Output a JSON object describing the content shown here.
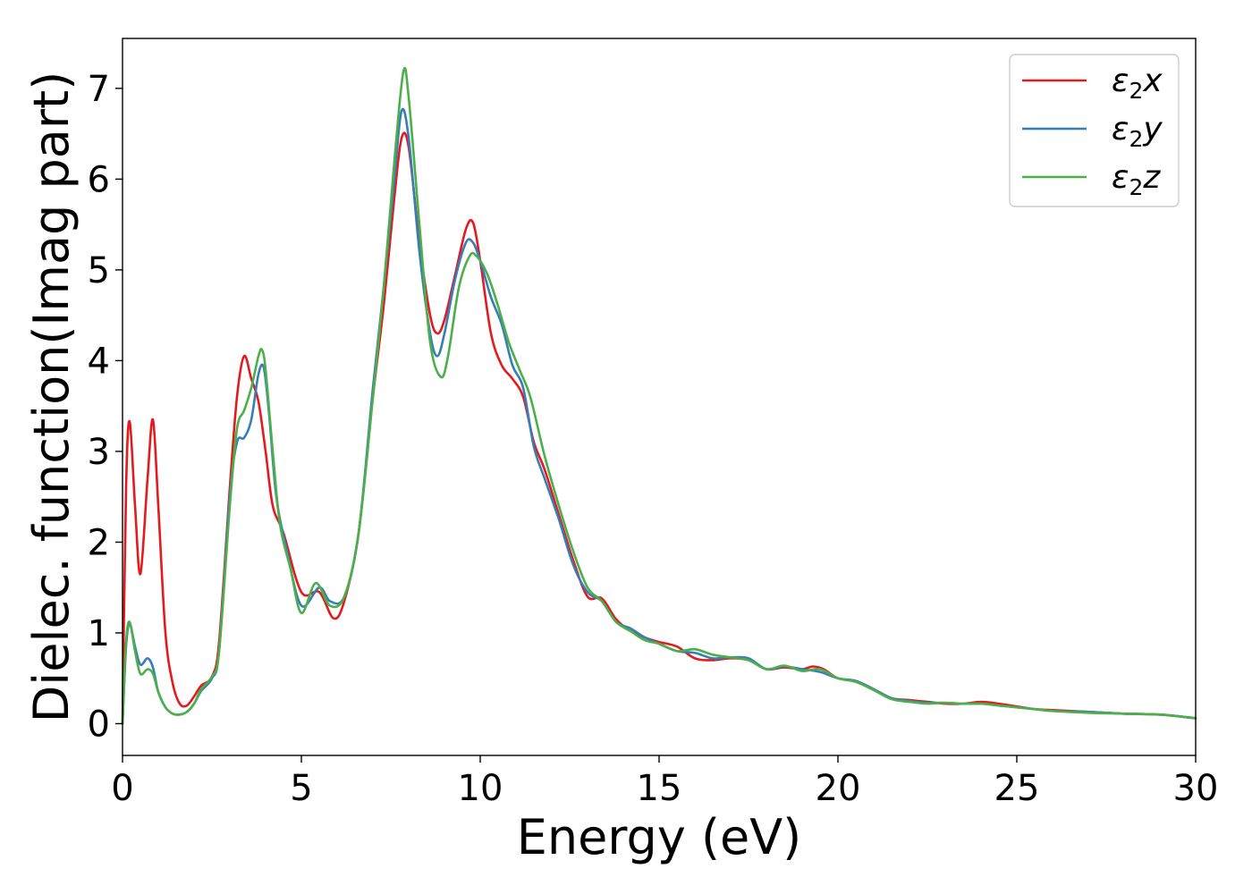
{
  "chart_data": {
    "type": "line",
    "title": "",
    "xlabel": "Energy (eV)",
    "ylabel": "Dielec. function(Imag part)",
    "xlim": [
      0,
      30
    ],
    "ylim": [
      -0.35,
      7.55
    ],
    "xticks": [
      0,
      5,
      10,
      15,
      20,
      25,
      30
    ],
    "xtick_labels": [
      "0",
      "5",
      "10",
      "15",
      "20",
      "25",
      "30"
    ],
    "yticks": [
      0,
      1,
      2,
      3,
      4,
      5,
      6,
      7
    ],
    "ytick_labels": [
      "0",
      "1",
      "2",
      "3",
      "4",
      "5",
      "6",
      "7"
    ],
    "grid": false,
    "legend_position": "top-right",
    "series": [
      {
        "name": "ε₂x",
        "label_main": "ε",
        "label_sub": "2",
        "label_tail": "x",
        "color": "#e41a1c",
        "x": [
          0,
          0.1,
          0.2,
          0.35,
          0.5,
          0.7,
          0.85,
          1.0,
          1.2,
          1.4,
          1.6,
          1.8,
          2.0,
          2.2,
          2.5,
          2.7,
          3.0,
          3.2,
          3.4,
          3.6,
          3.8,
          4.0,
          4.2,
          4.5,
          5.0,
          5.5,
          5.9,
          6.2,
          6.6,
          7.0,
          7.3,
          7.6,
          7.8,
          8.0,
          8.3,
          8.6,
          8.8,
          9.0,
          9.3,
          9.6,
          9.8,
          10.0,
          10.3,
          10.6,
          10.9,
          11.2,
          11.5,
          11.8,
          12.2,
          12.6,
          13.0,
          13.4,
          13.8,
          14.2,
          14.6,
          15.0,
          15.5,
          16.0,
          16.5,
          17.0,
          17.5,
          18.0,
          18.5,
          19.0,
          19.3,
          19.6,
          20.0,
          20.5,
          21.0,
          21.5,
          22.0,
          22.5,
          23.0,
          23.5,
          24.0,
          24.5,
          25.0,
          25.5,
          26.0,
          27.0,
          28.0,
          29.0,
          30.0
        ],
        "y": [
          0.0,
          2.6,
          3.33,
          2.4,
          1.65,
          2.7,
          3.35,
          2.4,
          1.0,
          0.45,
          0.22,
          0.2,
          0.3,
          0.42,
          0.52,
          0.9,
          2.6,
          3.6,
          4.05,
          3.8,
          3.55,
          3.0,
          2.4,
          2.1,
          1.45,
          1.45,
          1.16,
          1.35,
          2.1,
          3.6,
          4.6,
          5.8,
          6.45,
          6.35,
          5.3,
          4.5,
          4.3,
          4.45,
          4.95,
          5.45,
          5.52,
          5.1,
          4.3,
          3.95,
          3.8,
          3.6,
          3.1,
          2.8,
          2.3,
          1.8,
          1.4,
          1.38,
          1.15,
          1.02,
          0.95,
          0.9,
          0.85,
          0.72,
          0.7,
          0.72,
          0.7,
          0.6,
          0.62,
          0.6,
          0.63,
          0.6,
          0.5,
          0.47,
          0.38,
          0.28,
          0.26,
          0.24,
          0.22,
          0.22,
          0.24,
          0.22,
          0.19,
          0.16,
          0.15,
          0.13,
          0.11,
          0.1,
          0.06
        ]
      },
      {
        "name": "ε₂y",
        "label_main": "ε",
        "label_sub": "2",
        "label_tail": "y",
        "color": "#377eb8",
        "x": [
          0,
          0.1,
          0.2,
          0.35,
          0.5,
          0.7,
          0.85,
          1.0,
          1.2,
          1.4,
          1.6,
          1.8,
          2.0,
          2.2,
          2.5,
          2.7,
          3.0,
          3.2,
          3.4,
          3.6,
          3.8,
          3.95,
          4.1,
          4.3,
          4.6,
          5.0,
          5.5,
          5.8,
          6.2,
          6.6,
          7.0,
          7.3,
          7.6,
          7.8,
          8.0,
          8.3,
          8.6,
          8.8,
          9.0,
          9.3,
          9.6,
          9.8,
          10.0,
          10.3,
          10.6,
          10.9,
          11.2,
          11.5,
          11.8,
          12.2,
          12.6,
          13.0,
          13.4,
          13.8,
          14.2,
          14.6,
          15.0,
          15.5,
          16.0,
          16.5,
          17.0,
          17.5,
          18.0,
          18.5,
          19.0,
          19.5,
          20.0,
          20.5,
          21.0,
          21.5,
          22.0,
          22.5,
          23.0,
          23.5,
          24.0,
          24.5,
          25.0,
          25.5,
          26.0,
          27.0,
          28.0,
          29.0,
          30.0
        ],
        "y": [
          0.0,
          0.85,
          1.1,
          0.85,
          0.65,
          0.72,
          0.62,
          0.35,
          0.18,
          0.11,
          0.1,
          0.13,
          0.22,
          0.36,
          0.5,
          0.8,
          2.5,
          3.1,
          3.15,
          3.35,
          3.85,
          3.92,
          3.4,
          2.5,
          1.9,
          1.3,
          1.5,
          1.35,
          1.4,
          2.1,
          3.7,
          4.8,
          6.0,
          6.75,
          6.45,
          5.2,
          4.3,
          4.05,
          4.3,
          4.9,
          5.3,
          5.3,
          5.1,
          4.7,
          4.4,
          3.95,
          3.7,
          3.05,
          2.7,
          2.25,
          1.75,
          1.45,
          1.35,
          1.12,
          1.05,
          0.95,
          0.88,
          0.8,
          0.78,
          0.72,
          0.73,
          0.72,
          0.6,
          0.63,
          0.6,
          0.57,
          0.5,
          0.47,
          0.38,
          0.28,
          0.25,
          0.23,
          0.23,
          0.22,
          0.22,
          0.2,
          0.18,
          0.16,
          0.14,
          0.13,
          0.11,
          0.1,
          0.06
        ]
      },
      {
        "name": "ε₂z",
        "label_main": "ε",
        "label_sub": "2",
        "label_tail": "z",
        "color": "#4daf4a",
        "x": [
          0,
          0.1,
          0.2,
          0.35,
          0.5,
          0.7,
          0.85,
          1.0,
          1.2,
          1.4,
          1.6,
          1.8,
          2.0,
          2.2,
          2.5,
          2.7,
          3.0,
          3.2,
          3.4,
          3.6,
          3.8,
          3.9,
          4.0,
          4.2,
          4.4,
          4.7,
          5.0,
          5.4,
          5.8,
          6.2,
          6.6,
          7.0,
          7.3,
          7.6,
          7.85,
          8.0,
          8.3,
          8.6,
          8.9,
          9.1,
          9.4,
          9.7,
          9.9,
          10.2,
          10.5,
          10.8,
          11.1,
          11.4,
          11.8,
          12.2,
          12.6,
          13.0,
          13.4,
          13.8,
          14.2,
          14.6,
          15.0,
          15.5,
          16.0,
          16.5,
          17.0,
          17.5,
          18.0,
          18.5,
          19.0,
          19.5,
          20.0,
          20.5,
          21.0,
          21.5,
          22.0,
          22.5,
          23.0,
          23.5,
          24.0,
          24.5,
          25.0,
          25.5,
          26.0,
          27.0,
          28.0,
          29.0,
          30.0
        ],
        "y": [
          0.0,
          0.9,
          1.12,
          0.8,
          0.55,
          0.6,
          0.55,
          0.35,
          0.18,
          0.11,
          0.1,
          0.13,
          0.22,
          0.38,
          0.52,
          0.8,
          2.4,
          3.25,
          3.45,
          3.7,
          4.05,
          4.12,
          3.9,
          3.0,
          2.2,
          1.7,
          1.22,
          1.55,
          1.3,
          1.4,
          2.1,
          3.6,
          4.8,
          6.2,
          7.18,
          6.9,
          5.5,
          4.2,
          3.82,
          4.05,
          4.8,
          5.15,
          5.15,
          4.95,
          4.6,
          4.2,
          3.9,
          3.6,
          2.95,
          2.4,
          1.9,
          1.5,
          1.35,
          1.12,
          1.02,
          0.92,
          0.88,
          0.8,
          0.82,
          0.76,
          0.73,
          0.7,
          0.6,
          0.64,
          0.58,
          0.6,
          0.5,
          0.46,
          0.37,
          0.27,
          0.24,
          0.22,
          0.23,
          0.22,
          0.22,
          0.2,
          0.18,
          0.16,
          0.14,
          0.12,
          0.11,
          0.1,
          0.06
        ]
      }
    ]
  }
}
